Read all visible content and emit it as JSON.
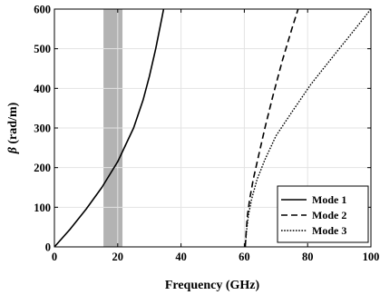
{
  "chart_data": {
    "type": "line",
    "xlabel": "Frequency (GHz)",
    "ylabel_symbol": "β",
    "ylabel_unit": " (rad/m)",
    "xlim": [
      0,
      100
    ],
    "ylim": [
      0,
      600
    ],
    "xticks": [
      0,
      20,
      40,
      60,
      80,
      100
    ],
    "yticks": [
      0,
      100,
      200,
      300,
      400,
      500,
      600
    ],
    "xtick_labels": [
      "0",
      "20",
      "40",
      "60",
      "80",
      "100"
    ],
    "ytick_labels": [
      "0",
      "100",
      "200",
      "300",
      "400",
      "500",
      "600"
    ],
    "grid": true,
    "legend_position": "bottom-right",
    "shaded_band": {
      "x_range": [
        15.5,
        21.5
      ],
      "color": "#b3b3b3"
    },
    "series": [
      {
        "name": "Mode 1",
        "style": "solid",
        "color": "#000000",
        "x": [
          0,
          5,
          10,
          15,
          20,
          25,
          28,
          30,
          32,
          33,
          34,
          34.5
        ],
        "y": [
          0,
          45,
          95,
          150,
          215,
          300,
          370,
          430,
          500,
          540,
          580,
          600
        ]
      },
      {
        "name": "Mode 2",
        "style": "dashed",
        "color": "#000000",
        "x": [
          60.3,
          60.6,
          61,
          61.7,
          62.8,
          64.5,
          66.5,
          69,
          72,
          75,
          77
        ],
        "y": [
          0,
          40,
          80,
          120,
          170,
          230,
          300,
          380,
          470,
          550,
          600
        ]
      },
      {
        "name": "Mode 3",
        "style": "dotted",
        "color": "#000000",
        "x": [
          60.3,
          60.7,
          61.3,
          62.3,
          64,
          66.5,
          70,
          75,
          81,
          88,
          94,
          100
        ],
        "y": [
          0,
          40,
          80,
          120,
          170,
          220,
          280,
          340,
          410,
          480,
          540,
          600
        ]
      }
    ]
  }
}
